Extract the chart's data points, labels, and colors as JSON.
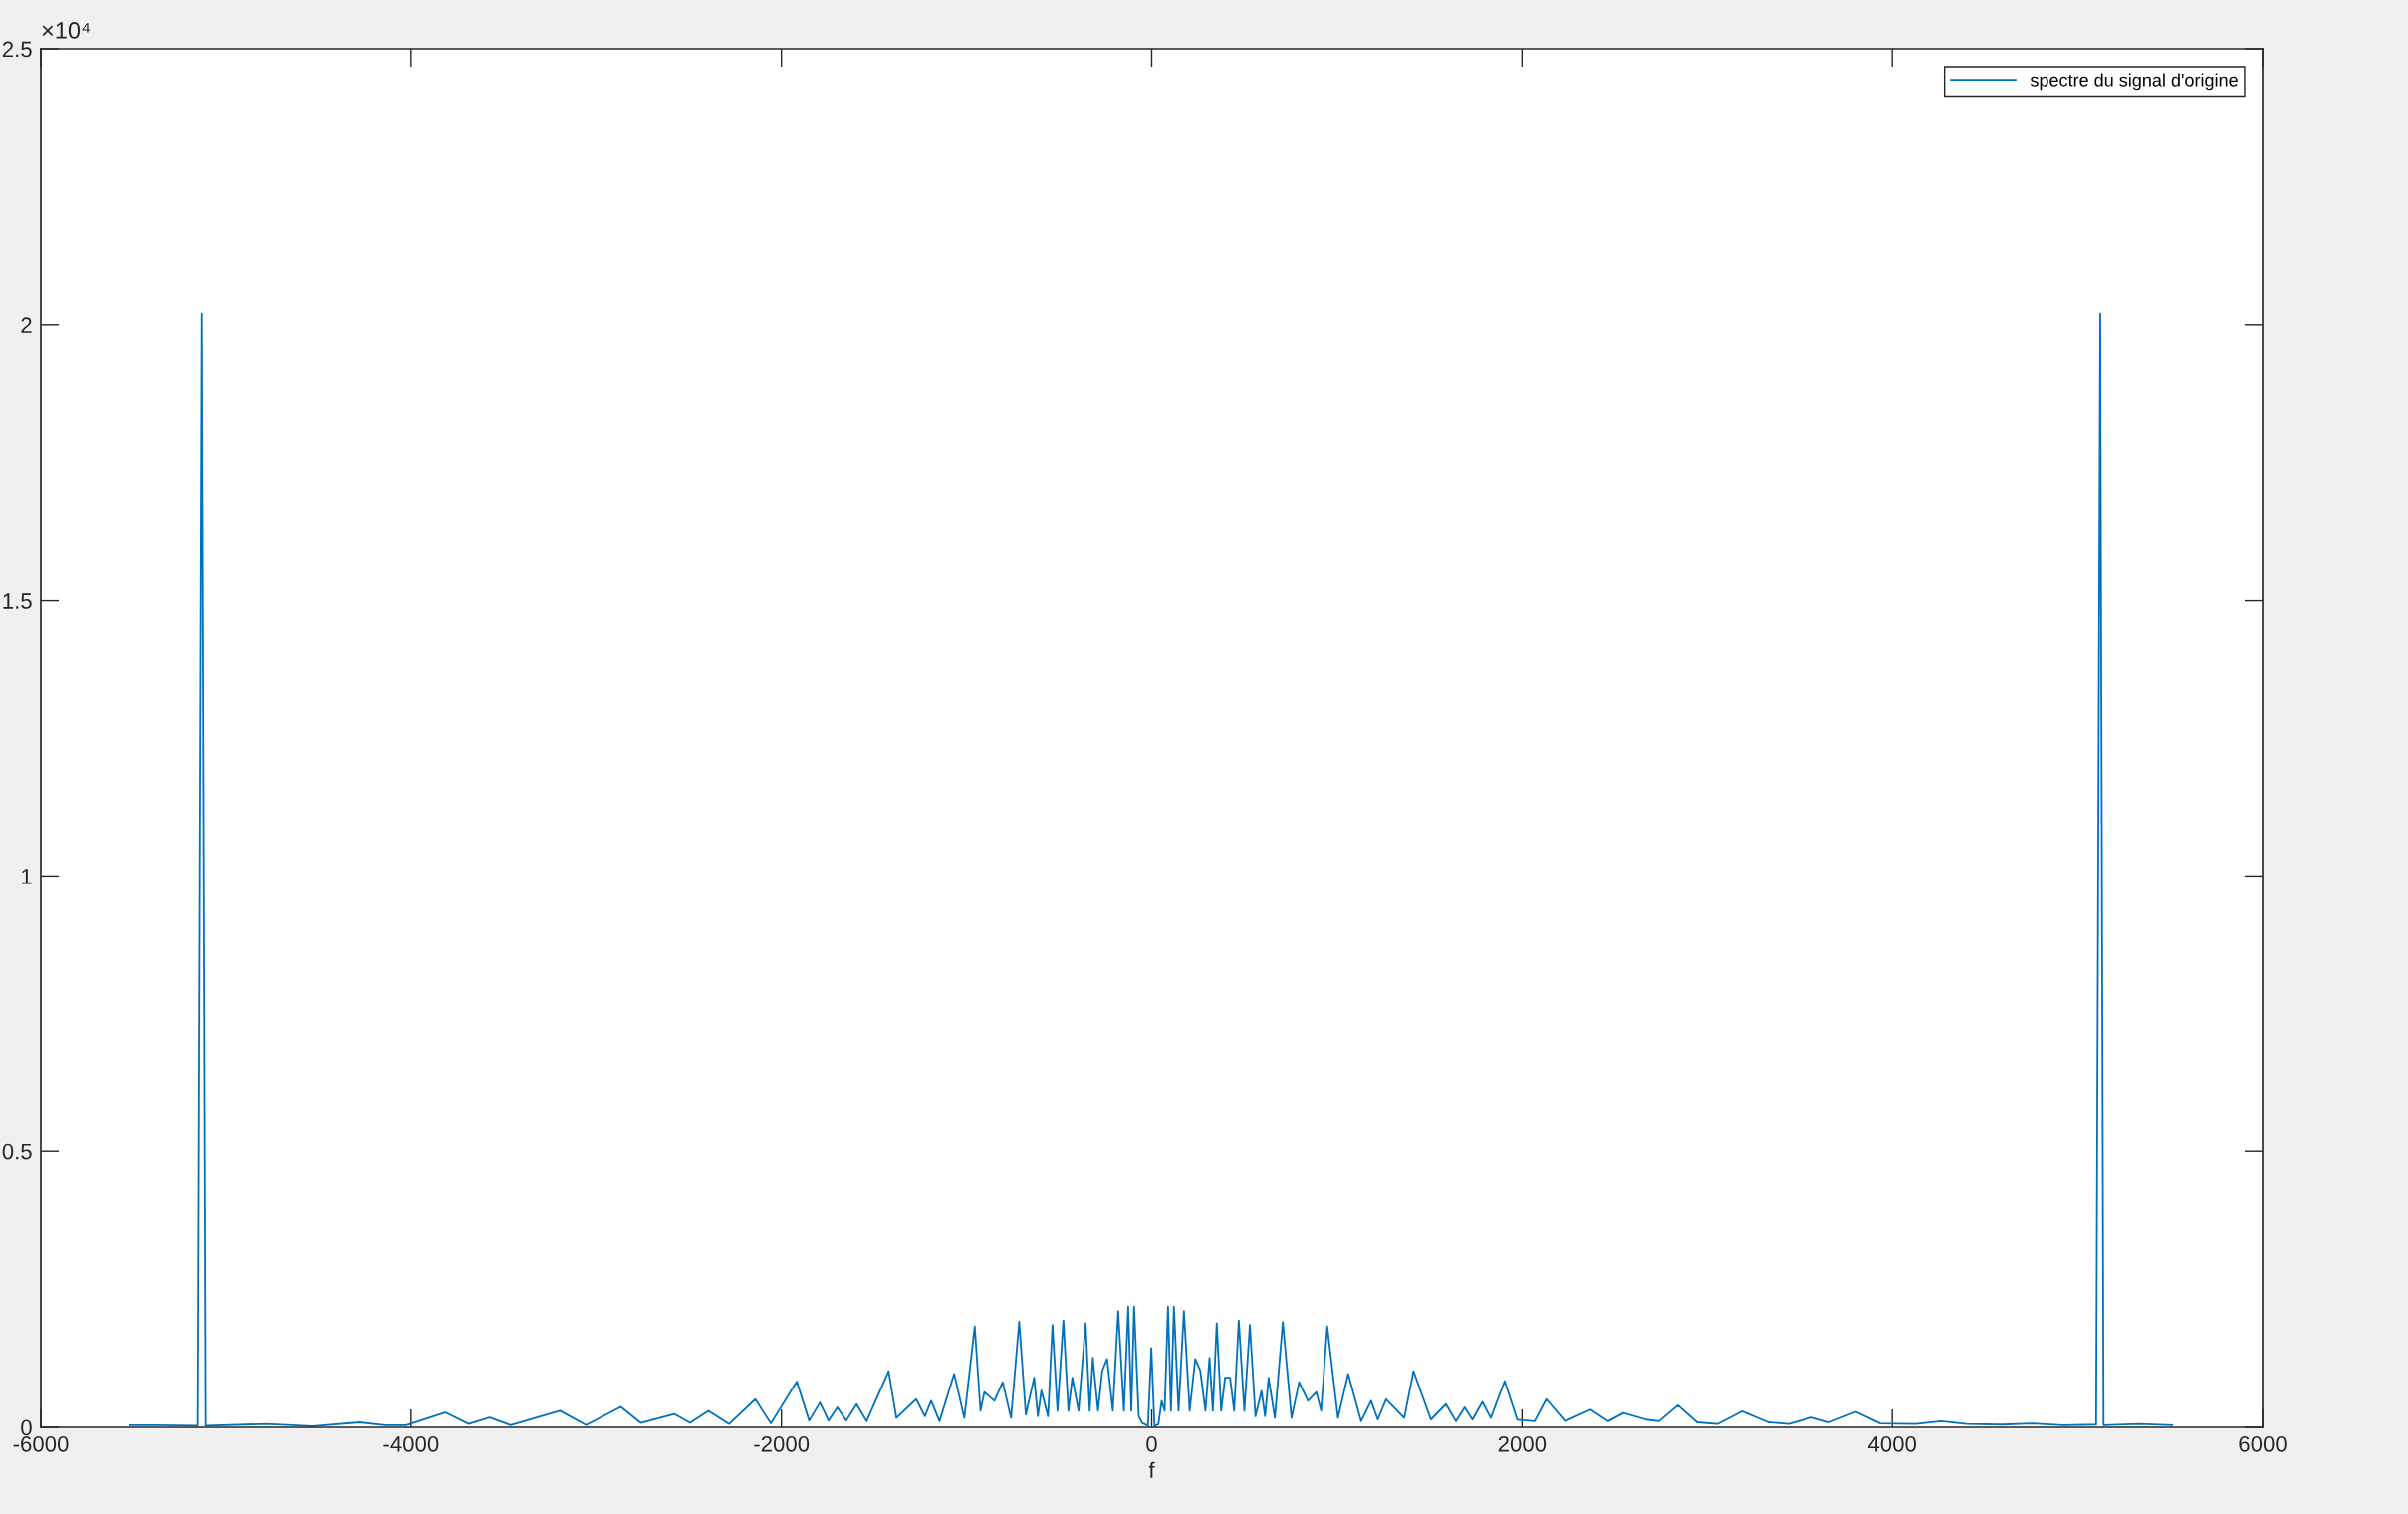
{
  "chart_data": {
    "type": "line",
    "xlabel": "f",
    "annotations": [
      "×10⁴"
    ],
    "xlim": [
      -6000,
      6000
    ],
    "xticks": [
      -6000,
      -4000,
      -2000,
      0,
      2000,
      4000,
      6000
    ],
    "ylim": [
      0,
      2.5
    ],
    "yticks": [
      0,
      0.5,
      1,
      1.5,
      2,
      2.5
    ],
    "legend": "top right",
    "line_style": "solid",
    "series": [
      {
        "name": "spectre du signal d'origine",
        "color": "#0072bd",
        "x": [
          -5517,
          -5377,
          -5152,
          -5130,
          -5109,
          -4786,
          -4533,
          -4279,
          -4139,
          -4026,
          -3815,
          -3689,
          -3576,
          -3463,
          -3196,
          -3055,
          -2867,
          -2760,
          -2577,
          -2493,
          -2394,
          -2282,
          -2141,
          -2057,
          -1917,
          -1850,
          -1792,
          -1745,
          -1698,
          -1650,
          -1594,
          -1540,
          -1421,
          -1379,
          -1272,
          -1225,
          -1191,
          -1146,
          -1067,
          -1012,
          -956,
          -925,
          -904,
          -850,
          -805,
          -760,
          -716,
          -680,
          -635,
          -615,
          -596,
          -560,
          -536,
          -509,
          -477,
          -450,
          -429,
          -395,
          -357,
          -335,
          -318,
          -290,
          -267,
          -241,
          -210,
          -181,
          -150,
          -127,
          -110,
          -95,
          -70,
          -52,
          -20,
          -2,
          15,
          36,
          54,
          70,
          88,
          104,
          120,
          145,
          174,
          205,
          235,
          262,
          290,
          312,
          330,
          351,
          375,
          396,
          423,
          445,
          470,
          500,
          530,
          560,
          593,
          612,
          631,
          665,
          708,
          755,
          796,
          844,
          889,
          915,
          948,
          1006,
          1061,
          1131,
          1185,
          1221,
          1266,
          1364,
          1414,
          1508,
          1589,
          1643,
          1690,
          1732,
          1786,
          1831,
          1906,
          1974,
          2068,
          2131,
          2233,
          2370,
          2466,
          2548,
          2671,
          2740,
          2842,
          2946,
          3056,
          3188,
          3330,
          3441,
          3564,
          3659,
          3803,
          3935,
          4127,
          4264,
          4401,
          4592,
          4757,
          4922,
          5101,
          5123,
          5141,
          5334,
          5512
        ],
        "values": [
          0.004,
          0.004,
          0.003,
          2.02,
          0.003,
          0.006,
          0.002,
          0.009,
          0.004,
          0.004,
          0.027,
          0.006,
          0.018,
          0.004,
          0.03,
          0.004,
          0.037,
          0.008,
          0.024,
          0.008,
          0.03,
          0.006,
          0.051,
          0.007,
          0.083,
          0.012,
          0.045,
          0.012,
          0.036,
          0.012,
          0.042,
          0.011,
          0.102,
          0.017,
          0.051,
          0.02,
          0.048,
          0.011,
          0.097,
          0.017,
          0.183,
          0.03,
          0.064,
          0.048,
          0.082,
          0.017,
          0.192,
          0.023,
          0.09,
          0.02,
          0.067,
          0.02,
          0.186,
          0.03,
          0.194,
          0.03,
          0.09,
          0.03,
          0.189,
          0.03,
          0.126,
          0.03,
          0.103,
          0.124,
          0.03,
          0.211,
          0.03,
          0.219,
          0.03,
          0.219,
          0.02,
          0.008,
          0.003,
          0.144,
          0.003,
          0.005,
          0.048,
          0.03,
          0.219,
          0.03,
          0.219,
          0.03,
          0.211,
          0.03,
          0.124,
          0.103,
          0.03,
          0.126,
          0.03,
          0.189,
          0.03,
          0.09,
          0.09,
          0.03,
          0.194,
          0.03,
          0.186,
          0.02,
          0.066,
          0.02,
          0.09,
          0.017,
          0.191,
          0.017,
          0.082,
          0.048,
          0.064,
          0.03,
          0.183,
          0.017,
          0.097,
          0.011,
          0.048,
          0.014,
          0.051,
          0.017,
          0.102,
          0.014,
          0.042,
          0.011,
          0.036,
          0.014,
          0.046,
          0.017,
          0.084,
          0.014,
          0.011,
          0.051,
          0.011,
          0.032,
          0.011,
          0.026,
          0.014,
          0.011,
          0.04,
          0.009,
          0.006,
          0.029,
          0.009,
          0.006,
          0.018,
          0.009,
          0.028,
          0.007,
          0.006,
          0.011,
          0.006,
          0.005,
          0.007,
          0.004,
          0.005,
          2.02,
          0.004,
          0.006,
          0.004
        ]
      }
    ]
  }
}
